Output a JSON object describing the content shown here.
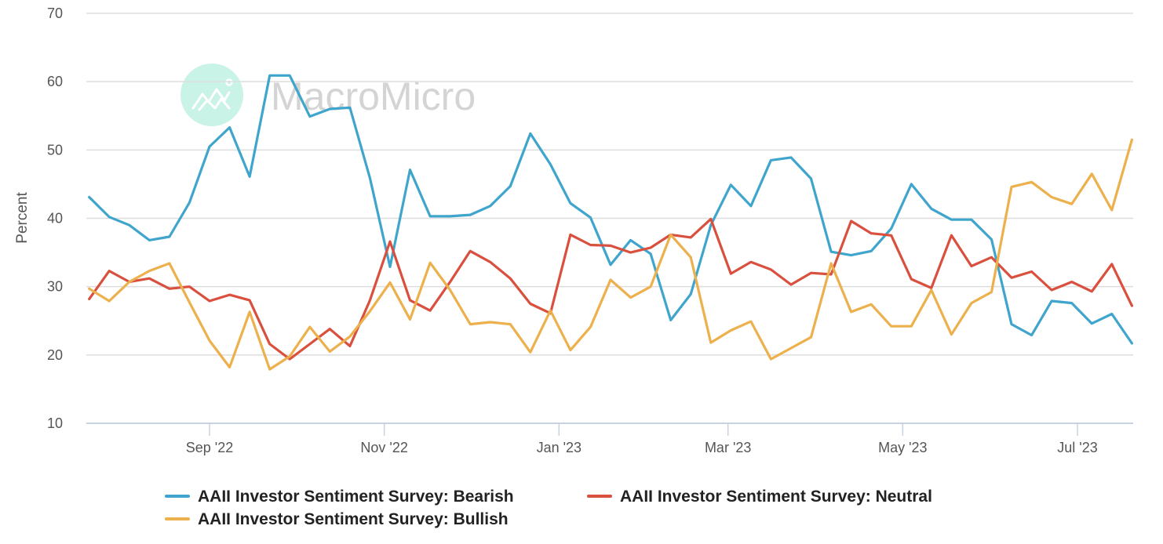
{
  "watermark": {
    "brand": "MacroMicro",
    "logo_color": "#c8f3e6"
  },
  "chart_data": {
    "type": "line",
    "title": "",
    "xlabel": "",
    "ylabel": "Percent",
    "ylim": [
      10,
      70
    ],
    "yticks": [
      10,
      20,
      30,
      40,
      50,
      60,
      70
    ],
    "grid": true,
    "legend_position": "bottom-center",
    "x_start": "2022-07-21",
    "x_end": "2023-07-20",
    "x_frequency": "weekly",
    "xtick_labels": [
      {
        "label": "Sep '22",
        "date": "2022-09-01"
      },
      {
        "label": "Nov '22",
        "date": "2022-11-01"
      },
      {
        "label": "Jan '23",
        "date": "2023-01-01"
      },
      {
        "label": "Mar '23",
        "date": "2023-03-01"
      },
      {
        "label": "May '23",
        "date": "2023-05-01"
      },
      {
        "label": "Jul '23",
        "date": "2023-07-01"
      }
    ],
    "x": [
      "2022-07-21",
      "2022-07-28",
      "2022-08-04",
      "2022-08-11",
      "2022-08-18",
      "2022-08-25",
      "2022-09-01",
      "2022-09-08",
      "2022-09-15",
      "2022-09-22",
      "2022-09-29",
      "2022-10-06",
      "2022-10-13",
      "2022-10-20",
      "2022-10-27",
      "2022-11-03",
      "2022-11-10",
      "2022-11-17",
      "2022-11-24",
      "2022-12-01",
      "2022-12-08",
      "2022-12-15",
      "2022-12-22",
      "2022-12-29",
      "2023-01-05",
      "2023-01-12",
      "2023-01-19",
      "2023-01-26",
      "2023-02-02",
      "2023-02-09",
      "2023-02-16",
      "2023-02-23",
      "2023-03-02",
      "2023-03-09",
      "2023-03-16",
      "2023-03-23",
      "2023-03-30",
      "2023-04-06",
      "2023-04-13",
      "2023-04-20",
      "2023-04-27",
      "2023-05-04",
      "2023-05-11",
      "2023-05-18",
      "2023-05-25",
      "2023-06-01",
      "2023-06-08",
      "2023-06-15",
      "2023-06-22",
      "2023-06-29",
      "2023-07-06",
      "2023-07-13",
      "2023-07-20"
    ],
    "series": [
      {
        "name": "AAII Investor Sentiment Survey: Bearish",
        "color": "#3fa5cc",
        "values": [
          43.1,
          40.2,
          39.0,
          36.8,
          37.3,
          42.3,
          50.5,
          53.3,
          46.1,
          60.9,
          60.9,
          54.9,
          56.0,
          56.2,
          45.9,
          32.9,
          47.1,
          40.3,
          40.3,
          40.5,
          41.8,
          44.7,
          52.4,
          47.9,
          42.2,
          40.1,
          33.2,
          36.8,
          34.8,
          25.1,
          28.9,
          39.0,
          44.9,
          41.8,
          48.5,
          48.9,
          45.8,
          35.1,
          34.6,
          35.2,
          38.5,
          45.0,
          41.4,
          39.8,
          39.8,
          36.9,
          24.5,
          22.9,
          27.9,
          27.6,
          24.6,
          26.0,
          21.7
        ]
      },
      {
        "name": "AAII Investor Sentiment Survey: Neutral",
        "color": "#d9503f",
        "values": [
          28.2,
          32.3,
          30.7,
          31.2,
          29.7,
          30.0,
          27.9,
          28.8,
          28.0,
          21.6,
          19.4,
          21.6,
          23.8,
          21.3,
          28.0,
          36.6,
          28.0,
          26.5,
          30.7,
          35.2,
          33.6,
          31.2,
          27.5,
          26.1,
          37.6,
          36.1,
          36.0,
          35.0,
          35.7,
          37.6,
          37.2,
          39.9,
          31.9,
          33.6,
          32.5,
          30.3,
          32.0,
          31.8,
          39.6,
          37.8,
          37.5,
          31.1,
          29.8,
          37.5,
          33.0,
          34.3,
          31.3,
          32.2,
          29.5,
          30.7,
          29.3,
          33.3,
          27.2
        ]
      },
      {
        "name": "AAII Investor Sentiment Survey: Bullish",
        "color": "#ecb04c",
        "values": [
          29.7,
          27.9,
          30.7,
          32.3,
          33.4,
          27.7,
          22.1,
          18.2,
          26.3,
          17.9,
          19.8,
          24.1,
          20.5,
          22.7,
          26.4,
          30.6,
          25.2,
          33.5,
          29.5,
          24.5,
          24.8,
          24.5,
          20.4,
          26.5,
          20.7,
          24.1,
          31.0,
          28.4,
          30.0,
          37.6,
          34.3,
          21.8,
          23.6,
          24.9,
          19.4,
          21.0,
          22.6,
          33.4,
          26.3,
          27.4,
          24.2,
          24.2,
          29.5,
          23.0,
          27.6,
          29.2,
          44.6,
          45.3,
          43.1,
          42.1,
          46.5,
          41.2,
          51.5
        ]
      }
    ]
  }
}
